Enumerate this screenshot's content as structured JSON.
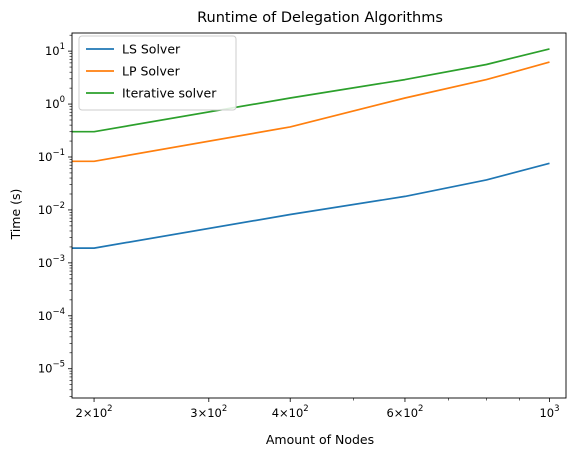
{
  "chart_data": {
    "type": "line",
    "title": "Runtime of Delegation Algorithms",
    "xlabel": "Amount of Nodes",
    "ylabel": "Time (s)",
    "xscale": "log",
    "yscale": "log",
    "xlim": [
      185,
      1060
    ],
    "ylim": [
      2.8e-06,
      22
    ],
    "grid": false,
    "legend_position": "top-left",
    "x": [
      185,
      200,
      400,
      600,
      800,
      1000
    ],
    "series": [
      {
        "name": "LS Solver",
        "color": "#1f77b4",
        "values": [
          0.0019,
          0.0019,
          0.0082,
          0.018,
          0.037,
          0.076
        ]
      },
      {
        "name": "LP Solver",
        "color": "#ff7f0e",
        "values": [
          0.083,
          0.083,
          0.37,
          1.3,
          2.9,
          6.2
        ]
      },
      {
        "name": "Iterative solver",
        "color": "#2ca02c",
        "values": [
          0.3,
          0.3,
          1.3,
          2.9,
          5.6,
          11
        ]
      }
    ],
    "x_ticks": [
      {
        "value": 200,
        "base": "2",
        "power": "2"
      },
      {
        "value": 300,
        "base": "3",
        "power": "2"
      },
      {
        "value": 400,
        "base": "4",
        "power": "2"
      },
      {
        "value": 600,
        "base": "6",
        "power": "2"
      },
      {
        "value": 1000,
        "base": "",
        "power": "3"
      }
    ],
    "x_minor_ticks": [
      500,
      700,
      800,
      900
    ],
    "y_ticks": [
      {
        "value": 1e-05,
        "power": "−5"
      },
      {
        "value": 0.0001,
        "power": "−4"
      },
      {
        "value": 0.001,
        "power": "−3"
      },
      {
        "value": 0.01,
        "power": "−2"
      },
      {
        "value": 0.1,
        "power": "−1"
      },
      {
        "value": 1,
        "power": "0"
      },
      {
        "value": 10,
        "power": "1"
      }
    ]
  }
}
